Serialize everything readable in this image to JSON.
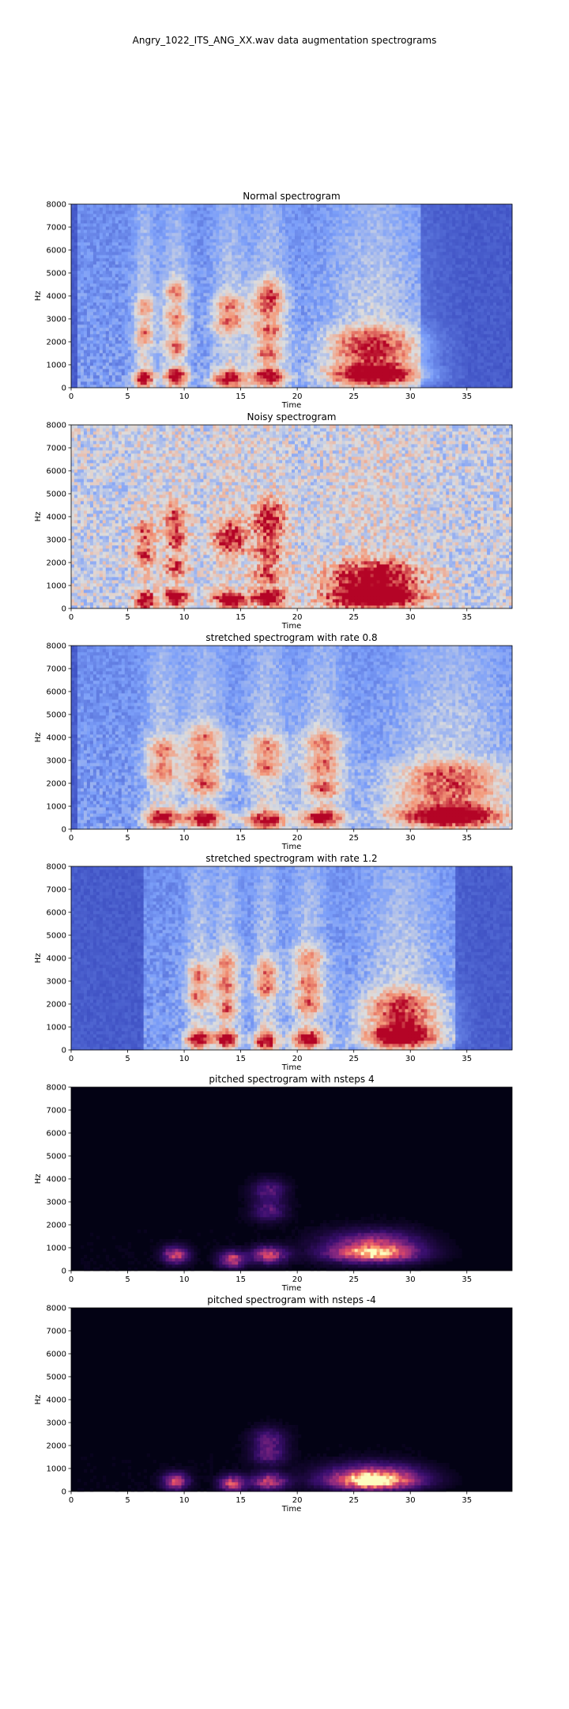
{
  "figure": {
    "suptitle": "Angry_1022_ITS_ANG_XX.wav data augmentation spectrograms"
  },
  "chart_data": [
    {
      "type": "heatmap",
      "title": "Normal spectrogram",
      "xlabel": "Time",
      "ylabel": "Hz",
      "xlim": [
        0,
        39
      ],
      "ylim": [
        0,
        8000
      ],
      "xticks": [
        0,
        5,
        10,
        15,
        20,
        25,
        30,
        35
      ],
      "yticks": [
        0,
        1000,
        2000,
        3000,
        4000,
        5000,
        6000,
        7000,
        8000
      ],
      "colormap": "coolwarm",
      "background_color": "#3b4cc0",
      "onset": 0.5,
      "offset": 31,
      "noise_level": 0,
      "segments": [
        {
          "t_start": 6,
          "t_end": 7,
          "hot_bands": [
            400,
            2300,
            3500
          ]
        },
        {
          "t_start": 8.5,
          "t_end": 10,
          "hot_bands": [
            500,
            1800,
            3000,
            4200
          ]
        },
        {
          "t_start": 13,
          "t_end": 15,
          "hot_bands": [
            400,
            2800,
            3600
          ]
        },
        {
          "t_start": 16.5,
          "t_end": 18.5,
          "hot_bands": [
            500,
            1500,
            2500,
            3500,
            4200
          ]
        },
        {
          "t_start": 24,
          "t_end": 29.5,
          "hot_bands": [
            500,
            900,
            1600,
            2200
          ]
        }
      ]
    },
    {
      "type": "heatmap",
      "title": "Noisy spectrogram",
      "xlabel": "Time",
      "ylabel": "Hz",
      "xlim": [
        0,
        39
      ],
      "ylim": [
        0,
        8000
      ],
      "xticks": [
        0,
        5,
        10,
        15,
        20,
        25,
        30,
        35
      ],
      "yticks": [
        0,
        1000,
        2000,
        3000,
        4000,
        5000,
        6000,
        7000,
        8000
      ],
      "colormap": "coolwarm",
      "background_color": "#d0d9ea",
      "onset": 0,
      "offset": 39,
      "noise_level": 1,
      "segments": [
        {
          "t_start": 6,
          "t_end": 7,
          "hot_bands": [
            400,
            2300,
            3300
          ]
        },
        {
          "t_start": 8.5,
          "t_end": 10,
          "hot_bands": [
            500,
            1800,
            3000,
            4000
          ]
        },
        {
          "t_start": 13,
          "t_end": 15,
          "hot_bands": [
            400,
            2800,
            3400
          ]
        },
        {
          "t_start": 16.5,
          "t_end": 18.5,
          "hot_bands": [
            500,
            1500,
            2500,
            3500,
            4200
          ]
        },
        {
          "t_start": 24,
          "t_end": 29.5,
          "hot_bands": [
            400,
            700,
            1200,
            1700
          ]
        }
      ]
    },
    {
      "type": "heatmap",
      "title": "stretched spectrogram with rate 0.8",
      "xlabel": "Time",
      "ylabel": "Hz",
      "xlim": [
        0,
        39
      ],
      "ylim": [
        0,
        8000
      ],
      "xticks": [
        0,
        5,
        10,
        15,
        20,
        25,
        30,
        35
      ],
      "yticks": [
        0,
        1000,
        2000,
        3000,
        4000,
        5000,
        6000,
        7000,
        8000
      ],
      "colormap": "coolwarm",
      "background_color": "#3b4cc0",
      "onset": 0.5,
      "offset": 39,
      "noise_level": 0,
      "segments": [
        {
          "t_start": 7,
          "t_end": 9,
          "hot_bands": [
            500,
            2500,
            3500
          ]
        },
        {
          "t_start": 10.5,
          "t_end": 13,
          "hot_bands": [
            500,
            2000,
            3000,
            4000
          ]
        },
        {
          "t_start": 16,
          "t_end": 18.5,
          "hot_bands": [
            400,
            2700,
            3600
          ]
        },
        {
          "t_start": 21,
          "t_end": 23.5,
          "hot_bands": [
            500,
            1800,
            2800,
            3800
          ]
        },
        {
          "t_start": 30,
          "t_end": 37,
          "hot_bands": [
            500,
            900,
            1700,
            2500
          ]
        }
      ]
    },
    {
      "type": "heatmap",
      "title": "stretched spectrogram with rate 1.2",
      "xlabel": "Time",
      "ylabel": "Hz",
      "xlim": [
        0,
        39
      ],
      "ylim": [
        0,
        8000
      ],
      "xticks": [
        0,
        5,
        10,
        15,
        20,
        25,
        30,
        35
      ],
      "yticks": [
        0,
        1000,
        2000,
        3000,
        4000,
        5000,
        6000,
        7000,
        8000
      ],
      "colormap": "coolwarm",
      "background_color": "#3b4cc0",
      "onset": 6.5,
      "offset": 34,
      "noise_level": 0,
      "segments": [
        {
          "t_start": 10.5,
          "t_end": 12,
          "hot_bands": [
            500,
            2300,
            3300
          ]
        },
        {
          "t_start": 13,
          "t_end": 14.5,
          "hot_bands": [
            500,
            1800,
            2800,
            3800
          ]
        },
        {
          "t_start": 16.5,
          "t_end": 18,
          "hot_bands": [
            400,
            2700,
            3500
          ]
        },
        {
          "t_start": 20,
          "t_end": 22,
          "hot_bands": [
            500,
            2000,
            2900,
            4000
          ]
        },
        {
          "t_start": 27,
          "t_end": 31.5,
          "hot_bands": [
            500,
            900,
            1500,
            2200
          ]
        }
      ]
    },
    {
      "type": "heatmap",
      "title": "pitched spectrogram with nsteps 4",
      "xlabel": "Time",
      "ylabel": "Hz",
      "xlim": [
        0,
        39
      ],
      "ylim": [
        0,
        8000
      ],
      "xticks": [
        0,
        5,
        10,
        15,
        20,
        25,
        30,
        35
      ],
      "yticks": [
        0,
        1000,
        2000,
        3000,
        4000,
        5000,
        6000,
        7000,
        8000
      ],
      "colormap": "magma",
      "background_color": "#030214",
      "onset": 0.5,
      "offset": 31,
      "noise_level": 0,
      "segments": [
        {
          "t_start": 8.5,
          "t_end": 10,
          "hot_bands": [
            700
          ]
        },
        {
          "t_start": 13.5,
          "t_end": 15,
          "hot_bands": [
            500
          ]
        },
        {
          "t_start": 16.5,
          "t_end": 18.5,
          "hot_bands": [
            700,
            2600,
            3500
          ]
        },
        {
          "t_start": 24,
          "t_end": 29.5,
          "hot_bands": [
            700,
            1000,
            1400
          ]
        }
      ]
    },
    {
      "type": "heatmap",
      "title": "pitched spectrogram with nsteps -4",
      "xlabel": "Time",
      "ylabel": "Hz",
      "xlim": [
        0,
        39
      ],
      "ylim": [
        0,
        8000
      ],
      "xticks": [
        0,
        5,
        10,
        15,
        20,
        25,
        30,
        35
      ],
      "yticks": [
        0,
        1000,
        2000,
        3000,
        4000,
        5000,
        6000,
        7000,
        8000
      ],
      "colormap": "magma",
      "background_color": "#030214",
      "onset": 0.5,
      "offset": 31,
      "noise_level": 0,
      "segments": [
        {
          "t_start": 8.5,
          "t_end": 10,
          "hot_bands": [
            450
          ]
        },
        {
          "t_start": 13.5,
          "t_end": 15,
          "hot_bands": [
            350
          ]
        },
        {
          "t_start": 16.5,
          "t_end": 18.5,
          "hot_bands": [
            450,
            1600,
            2300
          ]
        },
        {
          "t_start": 24,
          "t_end": 29.5,
          "hot_bands": [
            400,
            600,
            900
          ]
        }
      ]
    }
  ]
}
